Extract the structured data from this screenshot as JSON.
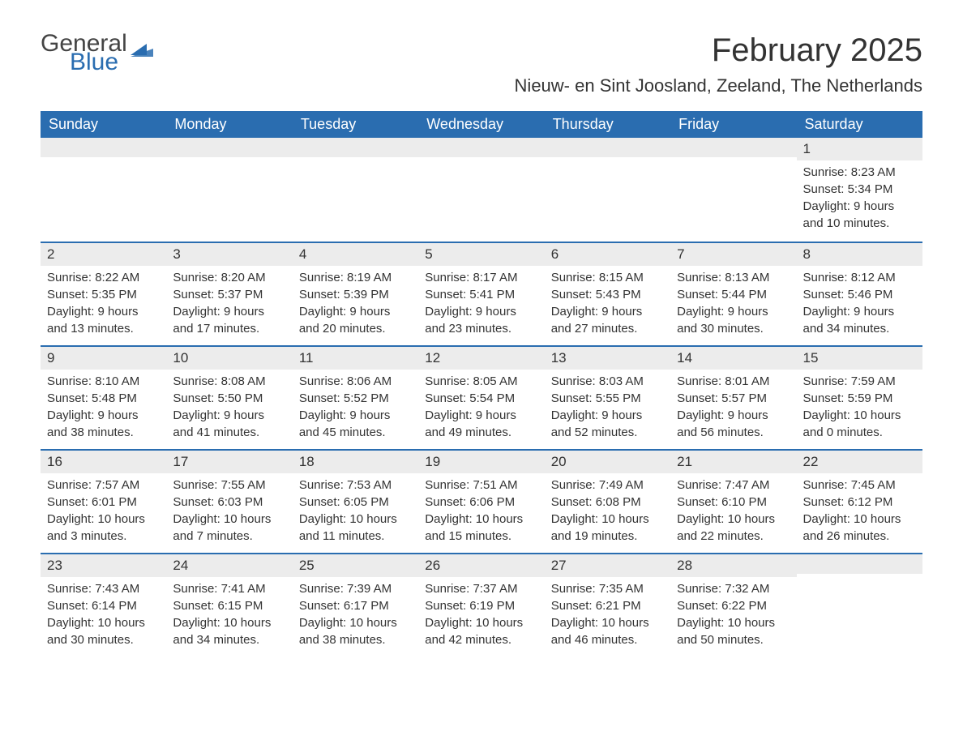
{
  "logo": {
    "line1": "General",
    "line2": "Blue"
  },
  "title": "February 2025",
  "location": "Nieuw- en Sint Joosland, Zeeland, The Netherlands",
  "colors": {
    "header_bg": "#2a6db0",
    "header_text": "#ffffff",
    "week_border": "#2a6db0",
    "daynum_bg": "#ececec",
    "body_text": "#333333",
    "background": "#ffffff"
  },
  "typography": {
    "title_fontsize": 40,
    "location_fontsize": 22,
    "dayheader_fontsize": 18,
    "daynum_fontsize": 17,
    "detail_fontsize": 15,
    "font_family": "Arial, Helvetica, sans-serif"
  },
  "day_headers": [
    "Sunday",
    "Monday",
    "Tuesday",
    "Wednesday",
    "Thursday",
    "Friday",
    "Saturday"
  ],
  "weeks": [
    [
      {
        "empty": true
      },
      {
        "empty": true
      },
      {
        "empty": true
      },
      {
        "empty": true
      },
      {
        "empty": true
      },
      {
        "empty": true
      },
      {
        "num": "1",
        "sunrise": "Sunrise: 8:23 AM",
        "sunset": "Sunset: 5:34 PM",
        "daylight1": "Daylight: 9 hours",
        "daylight2": "and 10 minutes."
      }
    ],
    [
      {
        "num": "2",
        "sunrise": "Sunrise: 8:22 AM",
        "sunset": "Sunset: 5:35 PM",
        "daylight1": "Daylight: 9 hours",
        "daylight2": "and 13 minutes."
      },
      {
        "num": "3",
        "sunrise": "Sunrise: 8:20 AM",
        "sunset": "Sunset: 5:37 PM",
        "daylight1": "Daylight: 9 hours",
        "daylight2": "and 17 minutes."
      },
      {
        "num": "4",
        "sunrise": "Sunrise: 8:19 AM",
        "sunset": "Sunset: 5:39 PM",
        "daylight1": "Daylight: 9 hours",
        "daylight2": "and 20 minutes."
      },
      {
        "num": "5",
        "sunrise": "Sunrise: 8:17 AM",
        "sunset": "Sunset: 5:41 PM",
        "daylight1": "Daylight: 9 hours",
        "daylight2": "and 23 minutes."
      },
      {
        "num": "6",
        "sunrise": "Sunrise: 8:15 AM",
        "sunset": "Sunset: 5:43 PM",
        "daylight1": "Daylight: 9 hours",
        "daylight2": "and 27 minutes."
      },
      {
        "num": "7",
        "sunrise": "Sunrise: 8:13 AM",
        "sunset": "Sunset: 5:44 PM",
        "daylight1": "Daylight: 9 hours",
        "daylight2": "and 30 minutes."
      },
      {
        "num": "8",
        "sunrise": "Sunrise: 8:12 AM",
        "sunset": "Sunset: 5:46 PM",
        "daylight1": "Daylight: 9 hours",
        "daylight2": "and 34 minutes."
      }
    ],
    [
      {
        "num": "9",
        "sunrise": "Sunrise: 8:10 AM",
        "sunset": "Sunset: 5:48 PM",
        "daylight1": "Daylight: 9 hours",
        "daylight2": "and 38 minutes."
      },
      {
        "num": "10",
        "sunrise": "Sunrise: 8:08 AM",
        "sunset": "Sunset: 5:50 PM",
        "daylight1": "Daylight: 9 hours",
        "daylight2": "and 41 minutes."
      },
      {
        "num": "11",
        "sunrise": "Sunrise: 8:06 AM",
        "sunset": "Sunset: 5:52 PM",
        "daylight1": "Daylight: 9 hours",
        "daylight2": "and 45 minutes."
      },
      {
        "num": "12",
        "sunrise": "Sunrise: 8:05 AM",
        "sunset": "Sunset: 5:54 PM",
        "daylight1": "Daylight: 9 hours",
        "daylight2": "and 49 minutes."
      },
      {
        "num": "13",
        "sunrise": "Sunrise: 8:03 AM",
        "sunset": "Sunset: 5:55 PM",
        "daylight1": "Daylight: 9 hours",
        "daylight2": "and 52 minutes."
      },
      {
        "num": "14",
        "sunrise": "Sunrise: 8:01 AM",
        "sunset": "Sunset: 5:57 PM",
        "daylight1": "Daylight: 9 hours",
        "daylight2": "and 56 minutes."
      },
      {
        "num": "15",
        "sunrise": "Sunrise: 7:59 AM",
        "sunset": "Sunset: 5:59 PM",
        "daylight1": "Daylight: 10 hours",
        "daylight2": "and 0 minutes."
      }
    ],
    [
      {
        "num": "16",
        "sunrise": "Sunrise: 7:57 AM",
        "sunset": "Sunset: 6:01 PM",
        "daylight1": "Daylight: 10 hours",
        "daylight2": "and 3 minutes."
      },
      {
        "num": "17",
        "sunrise": "Sunrise: 7:55 AM",
        "sunset": "Sunset: 6:03 PM",
        "daylight1": "Daylight: 10 hours",
        "daylight2": "and 7 minutes."
      },
      {
        "num": "18",
        "sunrise": "Sunrise: 7:53 AM",
        "sunset": "Sunset: 6:05 PM",
        "daylight1": "Daylight: 10 hours",
        "daylight2": "and 11 minutes."
      },
      {
        "num": "19",
        "sunrise": "Sunrise: 7:51 AM",
        "sunset": "Sunset: 6:06 PM",
        "daylight1": "Daylight: 10 hours",
        "daylight2": "and 15 minutes."
      },
      {
        "num": "20",
        "sunrise": "Sunrise: 7:49 AM",
        "sunset": "Sunset: 6:08 PM",
        "daylight1": "Daylight: 10 hours",
        "daylight2": "and 19 minutes."
      },
      {
        "num": "21",
        "sunrise": "Sunrise: 7:47 AM",
        "sunset": "Sunset: 6:10 PM",
        "daylight1": "Daylight: 10 hours",
        "daylight2": "and 22 minutes."
      },
      {
        "num": "22",
        "sunrise": "Sunrise: 7:45 AM",
        "sunset": "Sunset: 6:12 PM",
        "daylight1": "Daylight: 10 hours",
        "daylight2": "and 26 minutes."
      }
    ],
    [
      {
        "num": "23",
        "sunrise": "Sunrise: 7:43 AM",
        "sunset": "Sunset: 6:14 PM",
        "daylight1": "Daylight: 10 hours",
        "daylight2": "and 30 minutes."
      },
      {
        "num": "24",
        "sunrise": "Sunrise: 7:41 AM",
        "sunset": "Sunset: 6:15 PM",
        "daylight1": "Daylight: 10 hours",
        "daylight2": "and 34 minutes."
      },
      {
        "num": "25",
        "sunrise": "Sunrise: 7:39 AM",
        "sunset": "Sunset: 6:17 PM",
        "daylight1": "Daylight: 10 hours",
        "daylight2": "and 38 minutes."
      },
      {
        "num": "26",
        "sunrise": "Sunrise: 7:37 AM",
        "sunset": "Sunset: 6:19 PM",
        "daylight1": "Daylight: 10 hours",
        "daylight2": "and 42 minutes."
      },
      {
        "num": "27",
        "sunrise": "Sunrise: 7:35 AM",
        "sunset": "Sunset: 6:21 PM",
        "daylight1": "Daylight: 10 hours",
        "daylight2": "and 46 minutes."
      },
      {
        "num": "28",
        "sunrise": "Sunrise: 7:32 AM",
        "sunset": "Sunset: 6:22 PM",
        "daylight1": "Daylight: 10 hours",
        "daylight2": "and 50 minutes."
      },
      {
        "empty": true
      }
    ]
  ]
}
